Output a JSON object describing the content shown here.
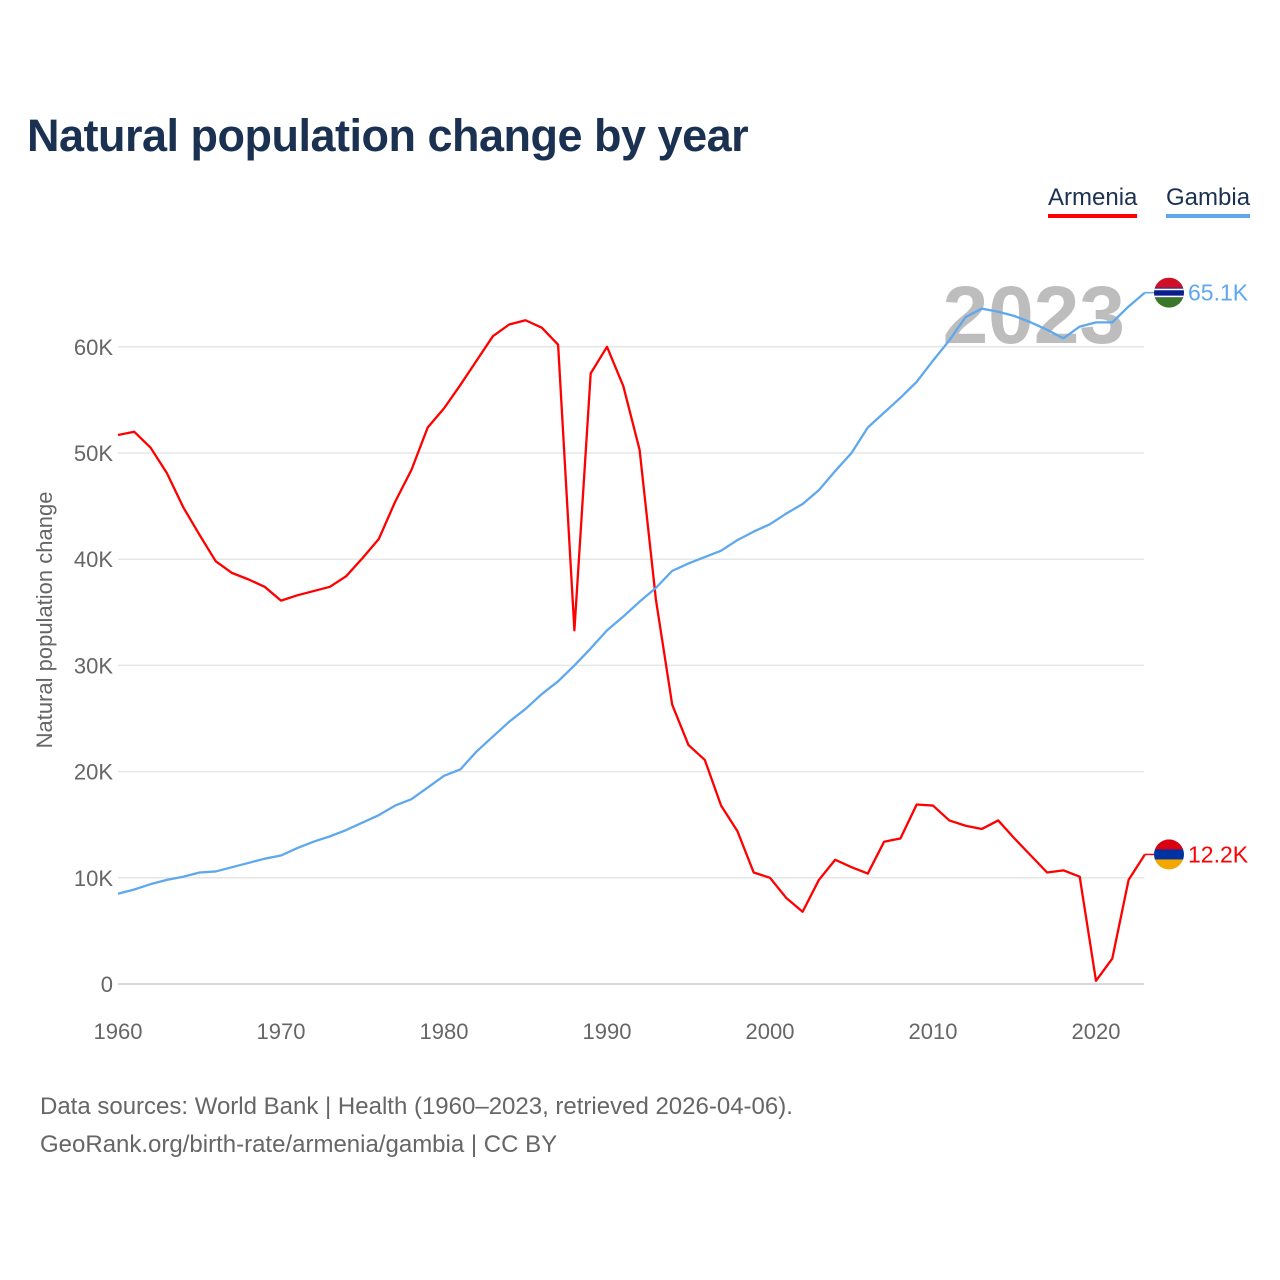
{
  "chart_data": {
    "type": "line",
    "title": "Natural population change by year",
    "xlabel": "",
    "ylabel": "Natural population change",
    "xlim": [
      1960,
      2023
    ],
    "ylim": [
      0,
      65000
    ],
    "x_ticks": [
      "1960",
      "1970",
      "1980",
      "1990",
      "2000",
      "2010",
      "2020"
    ],
    "y_ticks": [
      "0",
      "10K",
      "20K",
      "30K",
      "40K",
      "50K",
      "60K"
    ],
    "grid": true,
    "legend_placement": "top-right",
    "year_label": "2023",
    "series": [
      {
        "name": "Armenia",
        "color": "#ff0000",
        "end_label": "12.2K",
        "values": [
          51700,
          52000,
          50500,
          48100,
          44900,
          42300,
          39800,
          38700,
          38100,
          37400,
          36100,
          36600,
          37000,
          37400,
          38400,
          40100,
          41900,
          45400,
          48400,
          52400,
          54200,
          56400,
          58700,
          61000,
          62100,
          62500,
          61800,
          60200,
          33300,
          57500,
          60000,
          56300,
          50300,
          36200,
          26300,
          22500,
          21100,
          16800,
          14400,
          10500,
          10000,
          8100,
          6800,
          9800,
          11700,
          11000,
          10400,
          13400,
          13700,
          16900,
          16800,
          15400,
          14900,
          14600,
          15400,
          13700,
          12100,
          10500,
          10700,
          10100,
          300,
          2400,
          9800,
          12200
        ]
      },
      {
        "name": "Gambia",
        "color": "#5fa8ee",
        "end_label": "65.1K",
        "values": [
          8500,
          8900,
          9400,
          9800,
          10100,
          10500,
          10600,
          11000,
          11400,
          11800,
          12100,
          12800,
          13400,
          13900,
          14500,
          15200,
          15900,
          16800,
          17400,
          18500,
          19600,
          20200,
          21900,
          23300,
          24700,
          25900,
          27300,
          28500,
          30000,
          31600,
          33300,
          34600,
          36000,
          37300,
          38900,
          39600,
          40200,
          40800,
          41800,
          42600,
          43300,
          44300,
          45200,
          46500,
          48300,
          50000,
          52400,
          53800,
          55200,
          56700,
          58700,
          60600,
          62800,
          63600,
          63300,
          62900,
          62300,
          61600,
          60800,
          61900,
          62300,
          62300,
          63800,
          65100
        ]
      }
    ]
  },
  "source_line1": "Data sources: World Bank | Health (1960–2023, retrieved 2026-04-06).",
  "source_line2": "GeoRank.org/birth-rate/armenia/gambia | CC BY"
}
